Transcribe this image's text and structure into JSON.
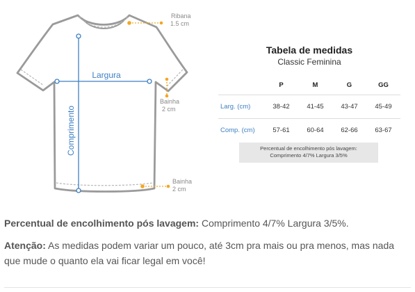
{
  "diagram": {
    "annotations": {
      "ribana": {
        "name": "Ribana",
        "size": "1.5 cm"
      },
      "largura": "Largura",
      "comprimento": "Comprimento",
      "bainha_manga": {
        "name": "Bainha",
        "size": "2 cm"
      },
      "bainha_inferior": {
        "name": "Bainha",
        "size": "2 cm"
      }
    },
    "colors": {
      "outline": "#9a9a9a",
      "measure_line": "#3d7fc2",
      "marker": "#f4a623"
    }
  },
  "table": {
    "title": "Tabela de medidas",
    "subtitle": "Classic Feminina",
    "headers": [
      "",
      "P",
      "M",
      "G",
      "GG"
    ],
    "rows": [
      {
        "label": "Larg. (cm)",
        "values": [
          "38-42",
          "41-45",
          "43-47",
          "45-49"
        ]
      },
      {
        "label": "Comp. (cm)",
        "values": [
          "57-61",
          "60-64",
          "62-66",
          "63-67"
        ]
      }
    ],
    "shrink_note": {
      "line1": "Percentual de encolhimento pós lavagem:",
      "line2": "Comprimento 4/7% Largura 3/5%"
    }
  },
  "text": {
    "shrink_label": "Percentual de encolhimento pós lavagem:",
    "shrink_value": " Comprimento 4/7% Largura 3/5%.",
    "warning_label": "Atenção:",
    "warning_text": " As medidas podem variar um pouco, até 3cm pra mais ou pra menos, mas nada que mude o quanto ela vai ficar legal em você!"
  }
}
